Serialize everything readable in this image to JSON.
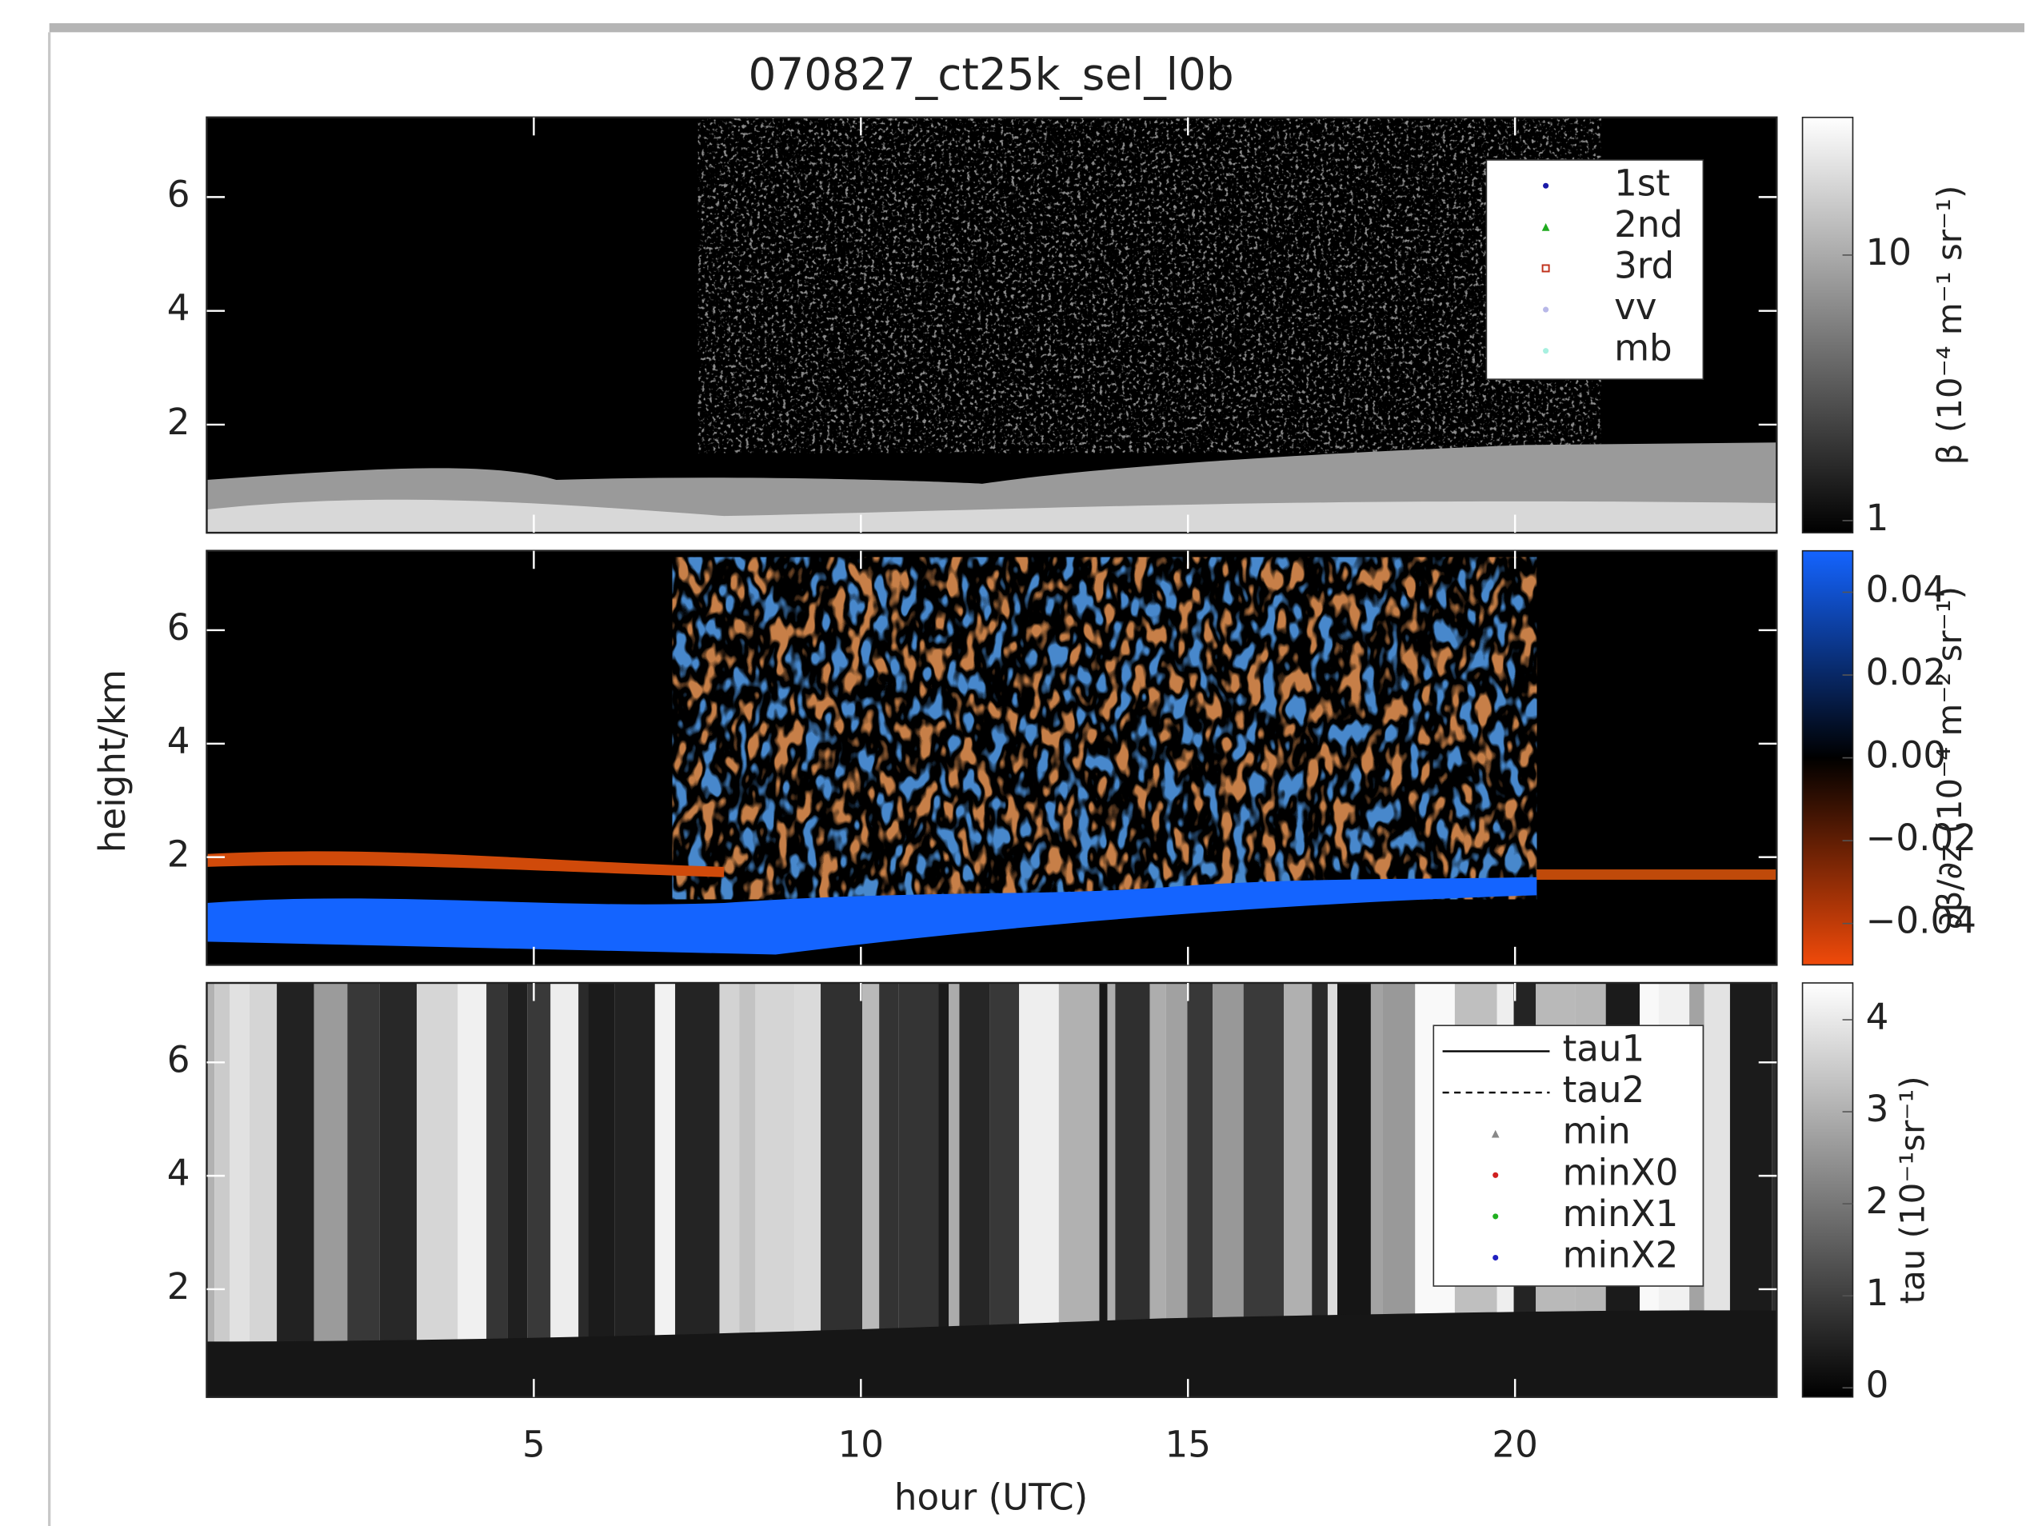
{
  "title": "070827_ct25k_sel_l0b",
  "x_label": "hour (UTC)",
  "y_label": "height/km",
  "chart_data": [
    {
      "type": "heatmap",
      "xlim": [
        0,
        24
      ],
      "xticks": [
        5,
        10,
        15,
        20
      ],
      "ylim": [
        0.1,
        7.4
      ],
      "yticks": [
        2,
        4,
        6
      ],
      "colorbar": {
        "label": "β (10⁻⁴ m⁻¹ sr⁻¹)",
        "clim": [
          0.9,
          33
        ],
        "log": true,
        "ticks": [
          1,
          10
        ],
        "colors": [
          "#000000",
          "#ffffff"
        ]
      },
      "legend": "upper right",
      "series": [
        {
          "name": "1st",
          "color": "#1a1aa8",
          "marker": "dot"
        },
        {
          "name": "2nd",
          "color": "#1faa1f",
          "marker": "triangle"
        },
        {
          "name": "3rd",
          "color": "#c0301a",
          "marker": "square"
        },
        {
          "name": "vv",
          "color": "#b8b8e8",
          "marker": "dot"
        },
        {
          "name": "mb",
          "color": "#a8f0e0",
          "marker": "dot"
        }
      ]
    },
    {
      "type": "heatmap",
      "xlim": [
        0,
        24
      ],
      "xticks": [
        5,
        10,
        15,
        20
      ],
      "ylim": [
        0.1,
        7.4
      ],
      "yticks": [
        2,
        4,
        6
      ],
      "colorbar": {
        "label": "∂β/∂z (10⁻⁴ m⁻² sr⁻¹)",
        "clim": [
          -0.05,
          0.05
        ],
        "log": false,
        "ticks": [
          0.04,
          0.02,
          {
            "value": 0,
            "label": "0.00"
          },
          {
            "value": -0.02,
            "label": "−0.02"
          },
          {
            "value": -0.04,
            "label": "−0.04"
          }
        ],
        "colors": [
          "#f04a0a",
          "#000000",
          "#1464ff"
        ]
      }
    },
    {
      "type": "heatmap",
      "xlim": [
        0,
        24
      ],
      "xticks": [
        5,
        10,
        15,
        20
      ],
      "ylim": [
        0.1,
        7.4
      ],
      "yticks": [
        2,
        4,
        6
      ],
      "colorbar": {
        "label": "tau (10⁻¹sr⁻¹)",
        "clim": [
          -0.1,
          4.4
        ],
        "log": false,
        "ticks": [
          0,
          1,
          2,
          3,
          4
        ],
        "colors": [
          "#000000",
          "#ffffff"
        ]
      },
      "legend": "upper right",
      "series": [
        {
          "name": "tau1",
          "color": "#000000",
          "marker": "solid"
        },
        {
          "name": "tau2",
          "color": "#000000",
          "marker": "dashed"
        },
        {
          "name": "min",
          "color": "#888888",
          "marker": "triangle"
        },
        {
          "name": "minX0",
          "color": "#d02020",
          "marker": "dot"
        },
        {
          "name": "minX1",
          "color": "#20b020",
          "marker": "dot"
        },
        {
          "name": "minX2",
          "color": "#2020c0",
          "marker": "dot"
        }
      ]
    }
  ]
}
